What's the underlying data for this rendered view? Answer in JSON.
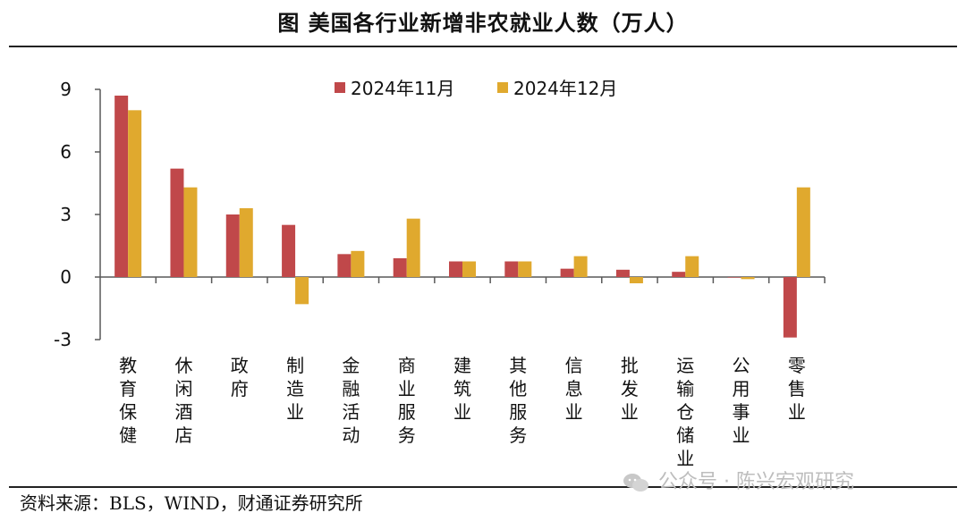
{
  "header": {
    "title": "图  美国各行业新增非农就业人数（万人）"
  },
  "footer": {
    "source": "资料来源：BLS，WIND，财通证券研究所",
    "watermark": "公众号 · 陈兴宏观研究"
  },
  "colors": {
    "series1": "#C0484A",
    "series2": "#E0A92E",
    "axis": "#595959"
  },
  "chart_data": {
    "type": "bar",
    "title": "美国各行业新增非农就业人数（万人）",
    "categories": [
      "教育保健",
      "休闲酒店",
      "政府",
      "制造业",
      "金融活动",
      "商业服务",
      "建筑业",
      "其他服务",
      "信息业",
      "批发业",
      "运输仓储业",
      "公用事业",
      "零售业"
    ],
    "series": [
      {
        "name": "2024年11月",
        "values": [
          8.7,
          5.2,
          3.0,
          2.5,
          1.1,
          0.9,
          0.75,
          0.75,
          0.4,
          0.35,
          0.25,
          0.0,
          -2.9
        ]
      },
      {
        "name": "2024年12月",
        "values": [
          8.0,
          4.3,
          3.3,
          -1.3,
          1.25,
          2.8,
          0.75,
          0.75,
          1.0,
          -0.3,
          1.0,
          -0.1,
          4.3
        ]
      }
    ],
    "yticks": [
      "9",
      "6",
      "3",
      "0",
      "-3"
    ],
    "ylim": [
      -3,
      9
    ],
    "xlabel": "",
    "ylabel": "",
    "legend": "top-center"
  }
}
